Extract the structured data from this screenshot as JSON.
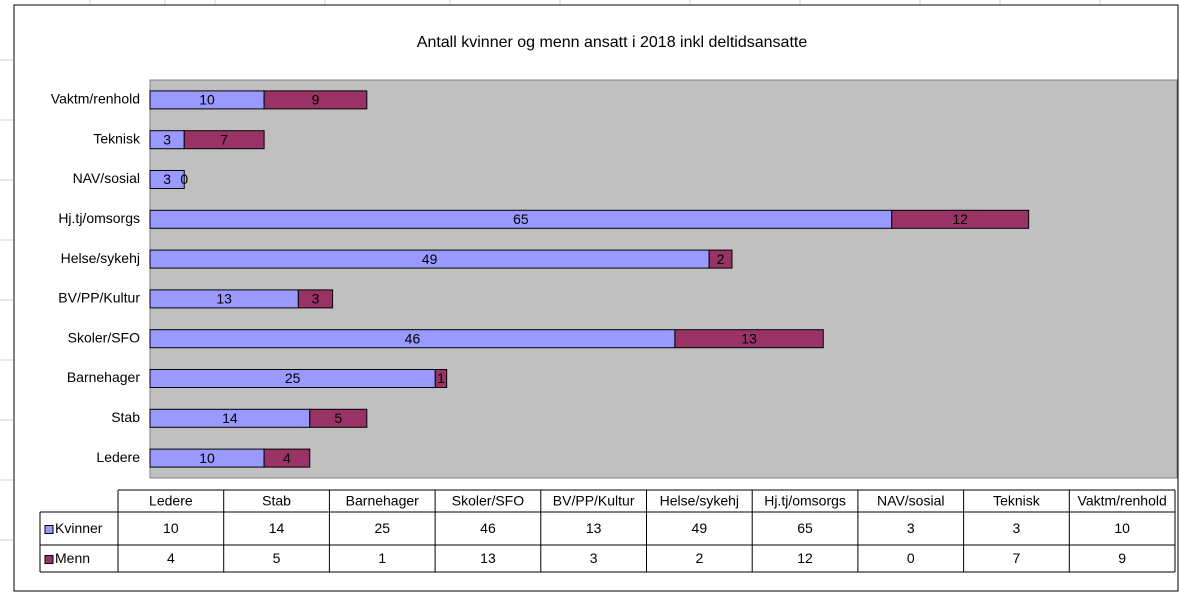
{
  "chart_data": {
    "type": "bar",
    "orientation": "horizontal",
    "stacked": true,
    "title": "Antall kvinner og menn ansatt i 2018 inkl deltidsansatte",
    "categories": [
      "Ledere",
      "Stab",
      "Barnehager",
      "Skoler/SFO",
      "BV/PP/Kultur",
      "Helse/sykehj",
      "Hj.tj/omsorgs",
      "NAV/sosial",
      "Teknisk",
      "Vaktm/renhold"
    ],
    "series": [
      {
        "name": "Kvinner",
        "color": "#9999ff",
        "values": [
          10,
          14,
          25,
          46,
          13,
          49,
          65,
          3,
          3,
          10
        ]
      },
      {
        "name": "Menn",
        "color": "#993366",
        "values": [
          4,
          5,
          1,
          13,
          3,
          2,
          12,
          0,
          7,
          9
        ]
      }
    ],
    "xlim": [
      0,
      90
    ],
    "data_table": true
  }
}
